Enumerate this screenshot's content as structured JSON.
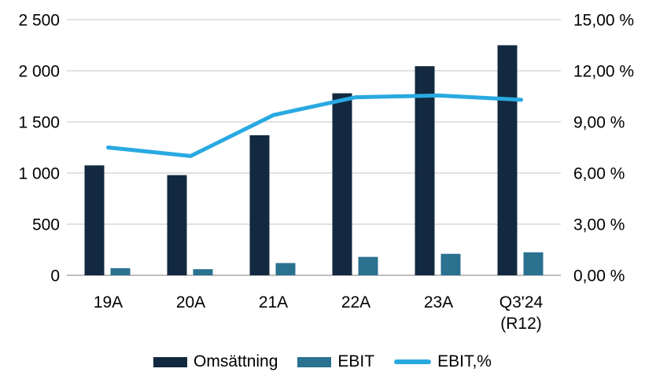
{
  "chart_data": {
    "type": "combo-bar-line",
    "title": "",
    "categories": [
      "19A",
      "20A",
      "21A",
      "22A",
      "23A",
      "Q3'24 (R12)"
    ],
    "categories_display": [
      [
        "19A"
      ],
      [
        "20A"
      ],
      [
        "21A"
      ],
      [
        "22A"
      ],
      [
        "23A"
      ],
      [
        "Q3'24",
        "(R12)"
      ]
    ],
    "series": [
      {
        "name": "Omsättning",
        "type": "bar",
        "axis": "left",
        "color": "#122940",
        "values": [
          1075,
          980,
          1370,
          1780,
          2045,
          2250
        ]
      },
      {
        "name": "EBIT",
        "type": "bar",
        "axis": "left",
        "color": "#2B7190",
        "values": [
          70,
          60,
          120,
          180,
          210,
          225
        ]
      },
      {
        "name": "EBIT,%",
        "type": "line",
        "axis": "right",
        "color": "#29A9E1",
        "values": [
          7.5,
          7.0,
          9.4,
          10.45,
          10.55,
          10.3
        ]
      }
    ],
    "left_axis": {
      "min": 0,
      "max": 2500,
      "step": 500,
      "tick_labels": [
        "0",
        "500",
        "1 000",
        "1 500",
        "2 000",
        "2 500"
      ]
    },
    "right_axis": {
      "min": 0,
      "max": 15,
      "step": 3,
      "tick_labels": [
        "0,00 %",
        "3,00 %",
        "6,00 %",
        "9,00 %",
        "12,00 %",
        "15,00 %"
      ]
    },
    "grid": {
      "on": true,
      "color": "#D9D9D9",
      "baseline_color": "#BFBFBF"
    },
    "legend": {
      "position": "bottom",
      "entries": [
        "Omsättning",
        "EBIT",
        "EBIT,%"
      ]
    },
    "text_color": "#000000",
    "background": "#FFFFFF"
  }
}
